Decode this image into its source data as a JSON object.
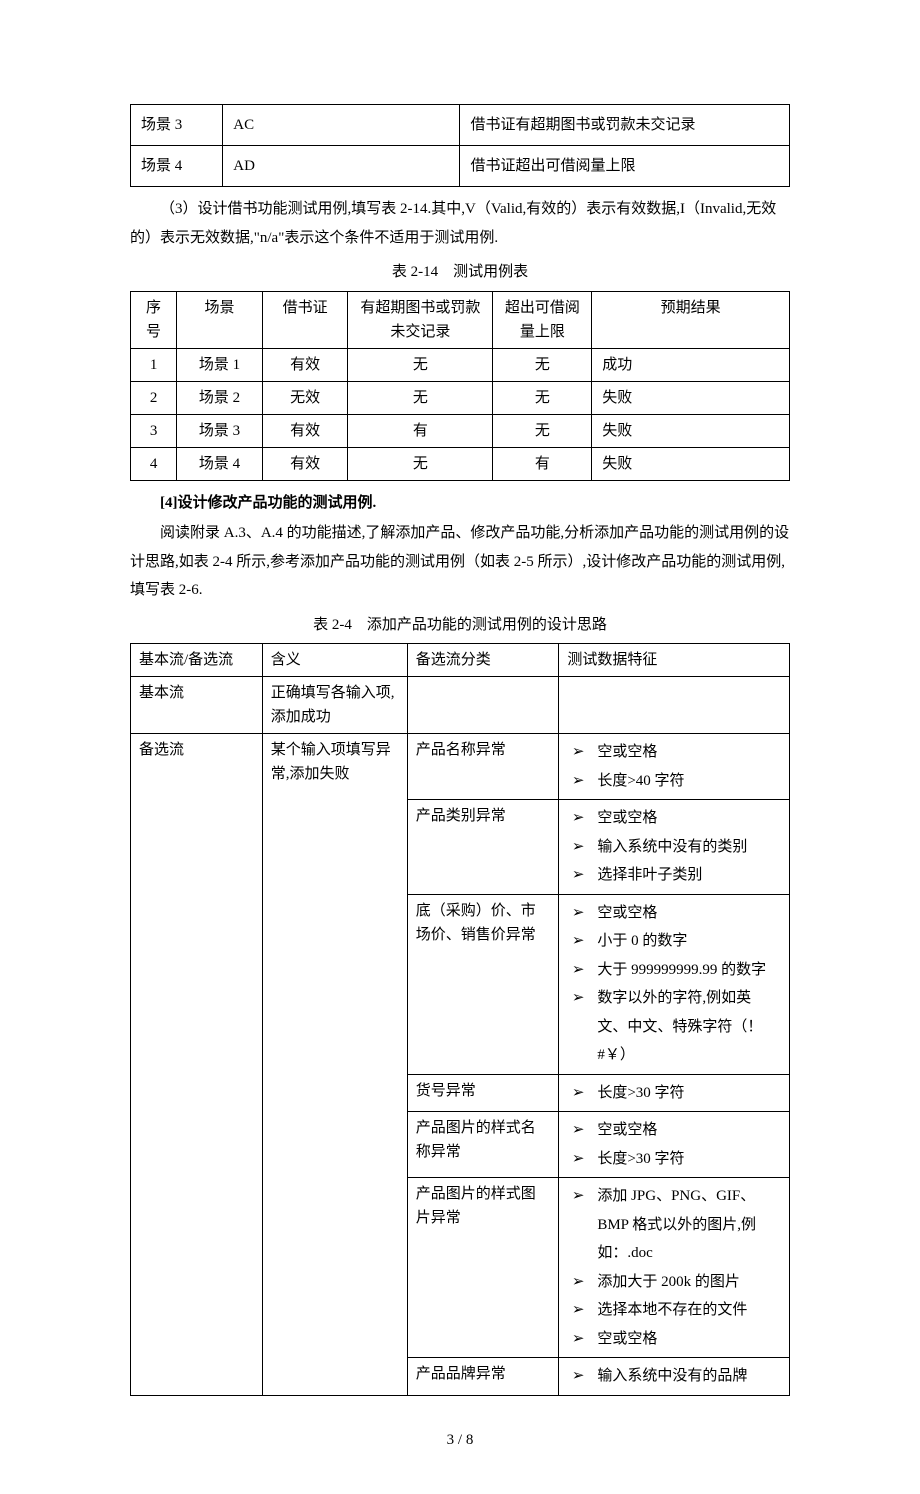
{
  "table1": {
    "rows": [
      {
        "c1": "场景 3",
        "c2": "AC",
        "c3": "借书证有超期图书或罚款未交记录"
      },
      {
        "c1": "场景 4",
        "c2": "AD",
        "c3": "借书证超出可借阅量上限"
      }
    ]
  },
  "para1": "（3）设计借书功能测试用例,填写表 2-14.其中,V（Valid,有效的）表示有效数据,I（Invalid,无效的）表示无效数据,\"n/a\"表示这个条件不适用于测试用例.",
  "caption1": "表 2-14　测试用例表",
  "table2": {
    "headers": [
      "序号",
      "场景",
      "借书证",
      "有超期图书或罚款未交记录",
      "超出可借阅量上限",
      "预期结果"
    ],
    "rows": [
      [
        "1",
        "场景 1",
        "有效",
        "无",
        "无",
        "成功"
      ],
      [
        "2",
        "场景 2",
        "无效",
        "无",
        "无",
        "失败"
      ],
      [
        "3",
        "场景 3",
        "有效",
        "有",
        "无",
        "失败"
      ],
      [
        "4",
        "场景 4",
        "有效",
        "无",
        "有",
        "失败"
      ]
    ]
  },
  "heading1": "[4]设计修改产品功能的测试用例.",
  "para2": "阅读附录 A.3、A.4 的功能描述,了解添加产品、修改产品功能,分析添加产品功能的测试用例的设计思路,如表 2-4 所示,参考添加产品功能的测试用例（如表 2-5 所示）,设计修改产品功能的测试用例,填写表 2-6.",
  "caption2": "表 2-4　添加产品功能的测试用例的设计思路",
  "table3": {
    "headers": [
      "基本流/备选流",
      "含义",
      "备选流分类",
      "测试数据特征"
    ],
    "row_basic": {
      "c1": "基本流",
      "c2": "正确填写各输入项,添加成功",
      "c3": "",
      "c4": ""
    },
    "row_alt_c1": "备选流",
    "row_alt_c2": "某个输入项填写异常,添加失败",
    "alt_groups": [
      {
        "cat": "产品名称异常",
        "items": [
          "空或空格",
          "长度>40 字符"
        ]
      },
      {
        "cat": "产品类别异常",
        "items": [
          "空或空格",
          "输入系统中没有的类别",
          "选择非叶子类别"
        ]
      },
      {
        "cat": "底（采购）价、市场价、销售价异常",
        "items": [
          "空或空格",
          "小于 0 的数字",
          "大于 999999999.99 的数字",
          "数字以外的字符,例如英文、中文、特殊字符（！#￥）"
        ]
      },
      {
        "cat": "货号异常",
        "items": [
          "长度>30 字符"
        ]
      },
      {
        "cat": "产品图片的样式名称异常",
        "items": [
          "空或空格",
          "长度>30 字符"
        ]
      },
      {
        "cat": "产品图片的样式图片异常",
        "items": [
          "添加 JPG、PNG、GIF、BMP 格式以外的图片,例如：.doc",
          "添加大于 200k 的图片",
          "选择本地不存在的文件",
          "空或空格"
        ]
      },
      {
        "cat": "产品品牌异常",
        "items": [
          "输入系统中没有的品牌"
        ]
      }
    ]
  },
  "footer": "3 / 8"
}
